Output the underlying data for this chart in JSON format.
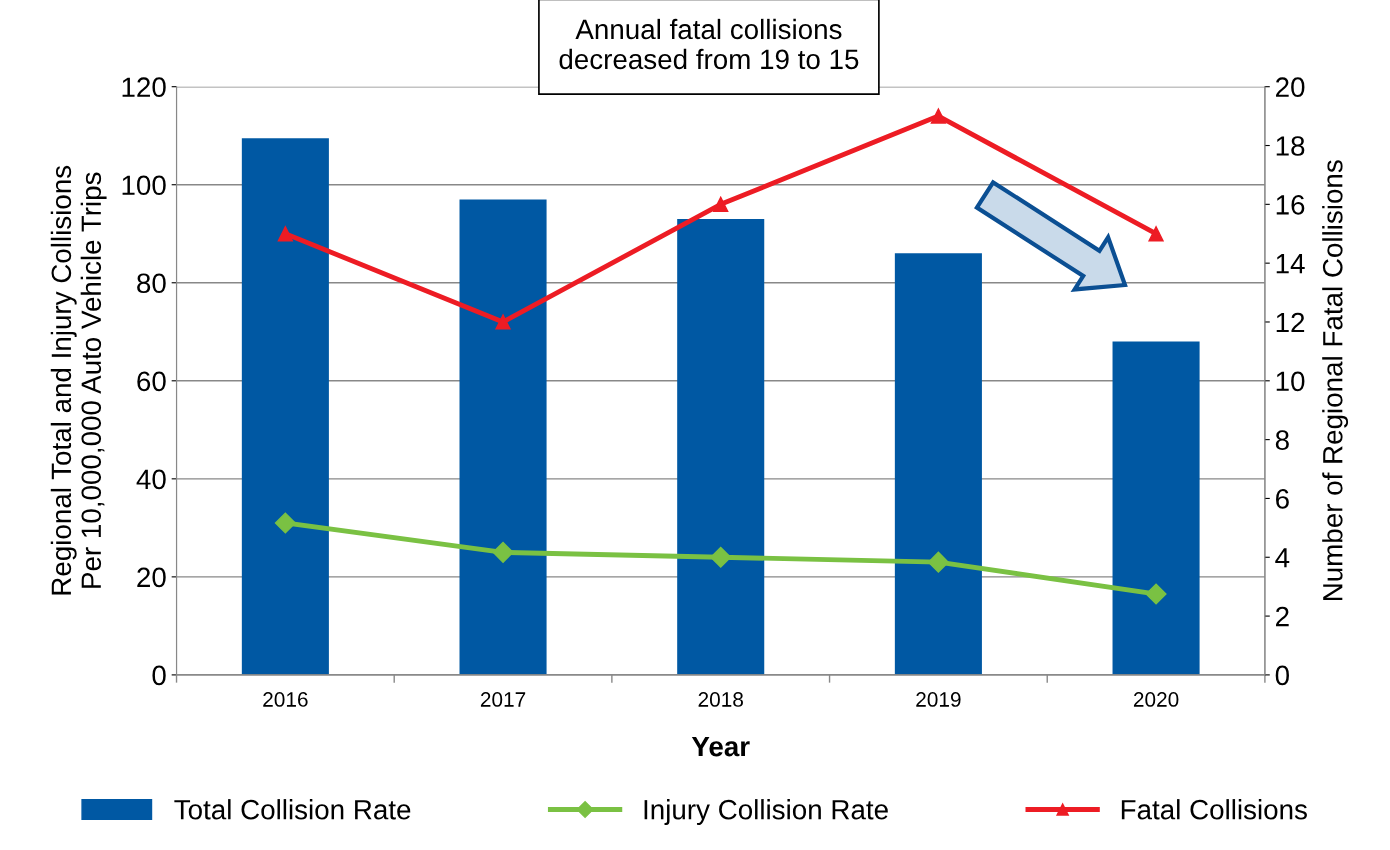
{
  "chart_data": {
    "type": "bar",
    "xlabel": "Year",
    "ylabel": "Regional Total and Injury Collisions\nPer 10,000,000 Auto Vehicle Trips",
    "y2label": "Number of Regional Fatal Collisions",
    "categories": [
      "2016",
      "2017",
      "2018",
      "2019",
      "2020"
    ],
    "series": [
      {
        "name": "Total Collision Rate",
        "color": "#0058a3",
        "values": [
          109.5,
          97,
          93,
          86,
          68
        ]
      },
      {
        "name": "Injury Collision Rate",
        "type": "line",
        "color": "#7ac143",
        "marker": "diamond",
        "values": [
          31,
          25,
          24,
          23,
          16.5
        ]
      },
      {
        "name": "Fatal Collisions",
        "type": "line",
        "color": "#ed1c24",
        "marker": "triangle",
        "axis": "y2",
        "values": [
          15,
          12,
          16,
          19,
          15
        ]
      }
    ],
    "ylim": [
      0,
      120
    ],
    "yticks": [
      0,
      20,
      40,
      60,
      80,
      100,
      120
    ],
    "y2lim": [
      0,
      20
    ],
    "y2ticks": [
      0,
      2,
      4,
      6,
      8,
      10,
      12,
      14,
      16,
      18,
      20
    ],
    "annotations": [
      "Annual fatal collisions\ndecreased from 19 to 15"
    ],
    "grid": "y",
    "legend": "bottom"
  }
}
